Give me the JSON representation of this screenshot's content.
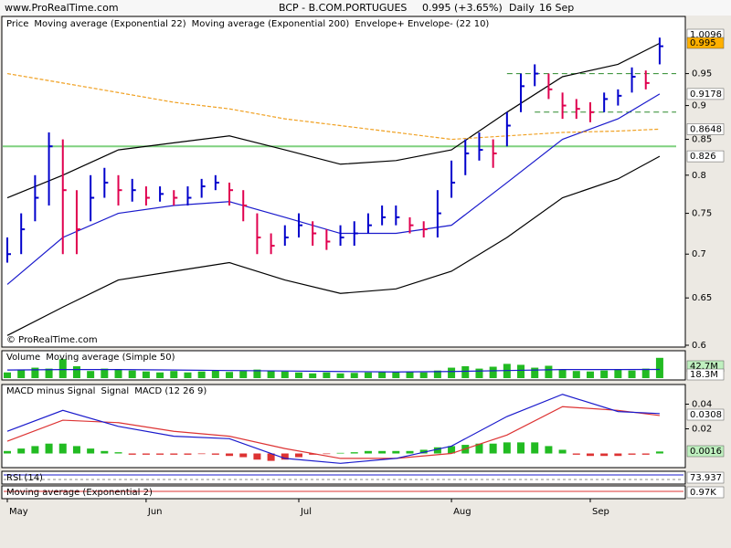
{
  "header": {
    "site": "www.ProRealTime.com",
    "instrument": "BCP - B.COM.PORTUGUES",
    "quote": "0.995 (+3.65%)",
    "period": "Daily",
    "date": "16 Sep"
  },
  "chart_data": [
    {
      "type": "ohlc",
      "legend_title": "Price",
      "copyright": "© ProRealTime.com",
      "categories": [
        "May",
        null,
        null,
        null,
        null,
        null,
        null,
        null,
        null,
        null,
        "Jun",
        null,
        null,
        null,
        null,
        null,
        null,
        null,
        null,
        null,
        null,
        "Jul",
        null,
        null,
        null,
        null,
        null,
        null,
        null,
        null,
        null,
        null,
        "Aug",
        null,
        null,
        null,
        null,
        null,
        null,
        null,
        null,
        null,
        "Sep",
        null,
        null,
        null,
        null,
        null
      ],
      "high": [
        0.72,
        0.75,
        0.8,
        0.86,
        0.85,
        0.78,
        0.8,
        0.81,
        0.8,
        0.795,
        0.785,
        0.785,
        0.78,
        0.785,
        0.795,
        0.8,
        0.79,
        0.78,
        0.75,
        0.725,
        0.735,
        0.75,
        0.74,
        0.73,
        0.735,
        0.74,
        0.75,
        0.76,
        0.76,
        0.745,
        0.74,
        0.78,
        0.82,
        0.85,
        0.86,
        0.85,
        0.89,
        0.95,
        0.965,
        0.95,
        0.92,
        0.91,
        0.905,
        0.92,
        0.925,
        0.96,
        0.955,
        1.0096
      ],
      "low": [
        0.69,
        0.7,
        0.74,
        0.76,
        0.7,
        0.7,
        0.74,
        0.77,
        0.76,
        0.765,
        0.76,
        0.765,
        0.76,
        0.76,
        0.77,
        0.78,
        0.76,
        0.74,
        0.7,
        0.7,
        0.71,
        0.72,
        0.71,
        0.705,
        0.71,
        0.71,
        0.725,
        0.735,
        0.735,
        0.725,
        0.72,
        0.72,
        0.77,
        0.8,
        0.82,
        0.81,
        0.84,
        0.89,
        0.93,
        0.91,
        0.88,
        0.88,
        0.875,
        0.89,
        0.9,
        0.92,
        0.925,
        0.965
      ],
      "close": [
        0.7,
        0.73,
        0.77,
        0.84,
        0.78,
        0.73,
        0.77,
        0.79,
        0.78,
        0.78,
        0.77,
        0.775,
        0.77,
        0.77,
        0.785,
        0.79,
        0.78,
        0.76,
        0.72,
        0.71,
        0.72,
        0.735,
        0.725,
        0.715,
        0.72,
        0.725,
        0.735,
        0.745,
        0.745,
        0.735,
        0.73,
        0.75,
        0.79,
        0.83,
        0.835,
        0.83,
        0.87,
        0.93,
        0.95,
        0.925,
        0.9,
        0.895,
        0.89,
        0.91,
        0.915,
        0.945,
        0.935,
        0.995
      ],
      "up_color": "#0000cc",
      "down_color": "#e0004f",
      "last_color": "#ffb000",
      "log_scale": true,
      "ylim": [
        0.6,
        1.04
      ],
      "yticks": [
        0.6,
        0.65,
        0.7,
        0.75,
        0.8,
        0.85,
        0.9,
        0.95
      ],
      "series": [
        {
          "name": "Moving average (Exponential 22)",
          "color": "#1a1acc",
          "x": [
            0,
            4,
            8,
            12,
            16,
            20,
            24,
            28,
            32,
            36,
            40,
            44,
            47
          ],
          "values": [
            0.665,
            0.72,
            0.75,
            0.76,
            0.765,
            0.745,
            0.725,
            0.725,
            0.735,
            0.79,
            0.85,
            0.88,
            0.9178
          ]
        },
        {
          "name": "Moving average (Exponential 200)",
          "color": "#f0a020",
          "dash": true,
          "x": [
            0,
            4,
            8,
            12,
            16,
            20,
            24,
            28,
            32,
            36,
            40,
            44,
            47
          ],
          "values": [
            0.95,
            0.935,
            0.92,
            0.905,
            0.895,
            0.88,
            0.87,
            0.86,
            0.85,
            0.855,
            0.86,
            0.862,
            0.8648
          ]
        }
      ],
      "envelope": {
        "name": "Envelope+ Envelope- (22 10)",
        "color": "#000000",
        "x": [
          0,
          4,
          8,
          12,
          16,
          20,
          24,
          28,
          32,
          36,
          40,
          44,
          47
        ],
        "upper": [
          0.77,
          0.8,
          0.835,
          0.845,
          0.855,
          0.835,
          0.815,
          0.82,
          0.835,
          0.89,
          0.945,
          0.965,
          1.0
        ],
        "lower": [
          0.61,
          0.64,
          0.67,
          0.68,
          0.69,
          0.67,
          0.655,
          0.66,
          0.68,
          0.72,
          0.77,
          0.795,
          0.826
        ]
      },
      "hlines": [
        {
          "value": 0.84,
          "color": "#7fd17f"
        },
        {
          "value": 0.95,
          "color": "#2a8a2a",
          "dash": true,
          "from": 36
        },
        {
          "value": 0.89,
          "color": "#2a8a2a",
          "dash": true,
          "from": 38
        }
      ]
    },
    {
      "type": "bar",
      "ylim": [
        0,
        50
      ],
      "series": [
        {
          "name": "Volume",
          "color": "#22bb22",
          "last_label": "42.7M",
          "values": [
            12,
            18,
            22,
            20,
            40,
            25,
            15,
            20,
            18,
            16,
            14,
            12,
            15,
            12,
            14,
            16,
            13,
            15,
            18,
            16,
            14,
            12,
            10,
            12,
            10,
            11,
            12,
            14,
            13,
            14,
            12,
            16,
            22,
            25,
            20,
            24,
            30,
            28,
            22,
            26,
            18,
            15,
            14,
            16,
            18,
            16,
            20,
            42.7
          ]
        },
        {
          "name": "Moving average (Simple 50)",
          "color": "#1a1acc",
          "last_label": "18.3M",
          "x": [
            0,
            4,
            8,
            12,
            16,
            20,
            24,
            28,
            32,
            36,
            40,
            44,
            47
          ],
          "values": [
            17,
            18,
            18,
            17,
            16,
            15,
            14,
            13,
            14,
            16,
            18,
            18,
            18.3
          ]
        }
      ]
    },
    {
      "type": "macd",
      "ylim": [
        -0.01,
        0.053
      ],
      "yticks": [
        0.04,
        0.02
      ],
      "series": [
        {
          "name": "MACD minus Signal",
          "color": "#22bb22",
          "neg_color": "#dd3333",
          "values": [
            0.002,
            0.004,
            0.006,
            0.008,
            0.008,
            0.006,
            0.004,
            0.002,
            0.001,
            -0.001,
            -0.001,
            -0.001,
            -0.001,
            -0.001,
            -0.0005,
            -0.001,
            -0.002,
            -0.003,
            -0.005,
            -0.006,
            -0.005,
            -0.003,
            -0.001,
            -0.0005,
            0.0005,
            0.001,
            0.002,
            0.002,
            0.002,
            0.002,
            0.003,
            0.005,
            0.006,
            0.007,
            0.008,
            0.008,
            0.009,
            0.009,
            0.009,
            0.006,
            0.003,
            -0.001,
            -0.002,
            -0.002,
            -0.002,
            -0.001,
            -0.001,
            0.0016
          ]
        },
        {
          "name": "Signal",
          "color": "#dd3333",
          "x": [
            0,
            4,
            8,
            12,
            16,
            20,
            24,
            28,
            32,
            36,
            40,
            44,
            47
          ],
          "values": [
            0.01,
            0.027,
            0.025,
            0.018,
            0.014,
            0.004,
            -0.004,
            -0.004,
            0.0,
            0.015,
            0.038,
            0.035,
            0.0308
          ]
        },
        {
          "name": "MACD (12 26 9)",
          "color": "#1a1acc",
          "x": [
            0,
            4,
            8,
            12,
            16,
            20,
            24,
            28,
            32,
            36,
            40,
            44,
            47
          ],
          "values": [
            0.018,
            0.035,
            0.022,
            0.014,
            0.012,
            -0.004,
            -0.008,
            -0.004,
            0.006,
            0.03,
            0.048,
            0.034,
            0.0324
          ]
        }
      ]
    }
  ],
  "lower_panels": [
    {
      "title": "RSI (14)",
      "last": 73.937
    },
    {
      "title": "Moving average (Exponential 2)",
      "last": "0.97K"
    }
  ]
}
